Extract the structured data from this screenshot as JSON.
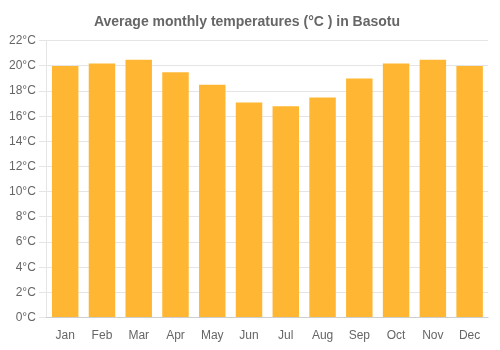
{
  "chart_data": {
    "type": "bar",
    "title": "Average monthly temperatures (°C ) in Basotu",
    "categories": [
      "Jan",
      "Feb",
      "Mar",
      "Apr",
      "May",
      "Jun",
      "Jul",
      "Aug",
      "Sep",
      "Oct",
      "Nov",
      "Dec"
    ],
    "values": [
      20.0,
      20.2,
      20.5,
      19.5,
      18.5,
      17.1,
      16.8,
      17.5,
      19.0,
      20.2,
      20.5,
      20.0
    ],
    "color": "#FFB733",
    "ylim": [
      0,
      22
    ],
    "yticks": [
      {
        "value": 0,
        "label": "0°C"
      },
      {
        "value": 2,
        "label": "2°C"
      },
      {
        "value": 4,
        "label": "4°C"
      },
      {
        "value": 6,
        "label": "6°C"
      },
      {
        "value": 8,
        "label": "8°C"
      },
      {
        "value": 10,
        "label": "10°C"
      },
      {
        "value": 12,
        "label": "12°C"
      },
      {
        "value": 14,
        "label": "14°C"
      },
      {
        "value": 16,
        "label": "16°C"
      },
      {
        "value": 18,
        "label": "18°C"
      },
      {
        "value": 20,
        "label": "20°C"
      },
      {
        "value": 22,
        "label": "22°C"
      }
    ],
    "grid": true
  }
}
